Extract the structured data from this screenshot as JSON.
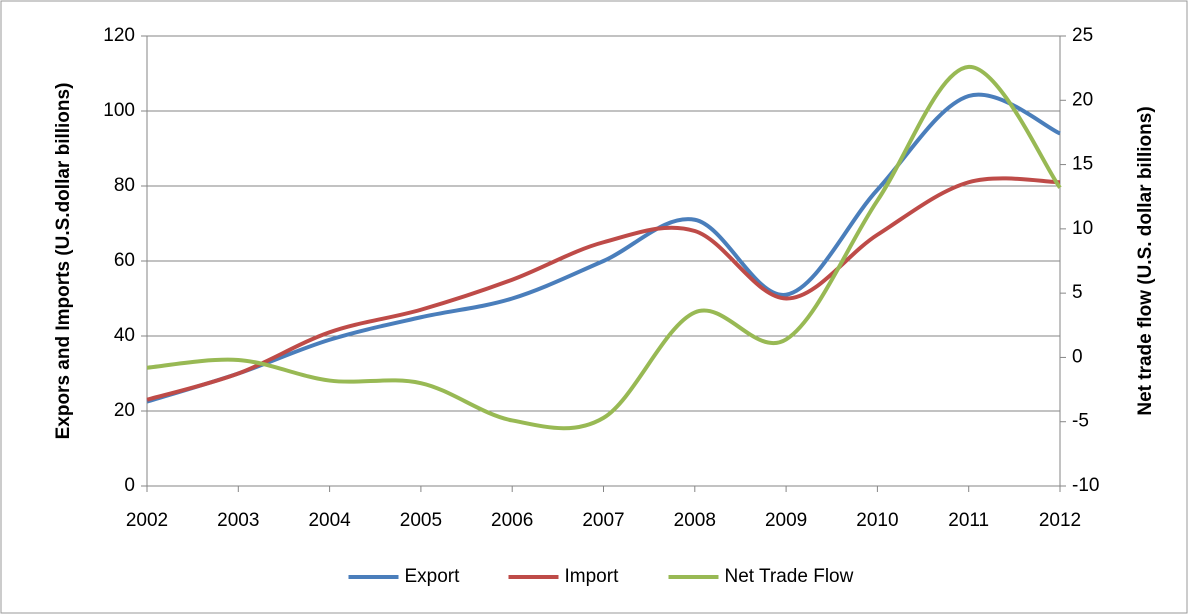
{
  "chart_data": {
    "type": "line",
    "y_label": "Expors and Imports (U.S.dollar billions)",
    "y2_label": "Net trade flow (U.S. dollar billions)",
    "categories": [
      "2002",
      "2003",
      "2004",
      "2005",
      "2006",
      "2007",
      "2008",
      "2009",
      "2010",
      "2011",
      "2012"
    ],
    "series": [
      {
        "name": "Export",
        "color": "#4a7ebb",
        "values": [
          22.5,
          30,
          39,
          45,
          50,
          60,
          71,
          51,
          79,
          104,
          94
        ]
      },
      {
        "name": "Import",
        "color": "#be4b48",
        "values": [
          23,
          30,
          41,
          47,
          55,
          65,
          68,
          50,
          67,
          81,
          81
        ]
      },
      {
        "name": "Net Trade Flow",
        "color": "#98b954",
        "axis": "y2",
        "values": [
          -0.8,
          -0.2,
          -1.8,
          -2,
          -4.9,
          -4.7,
          3.5,
          1.4,
          12.2,
          22.6,
          13.2
        ]
      }
    ],
    "ylim": [
      0,
      120
    ],
    "yticks": [
      0,
      20,
      40,
      60,
      80,
      100,
      120
    ],
    "y2lim": [
      -10,
      25
    ],
    "y2ticks": [
      -10,
      -5,
      0,
      5,
      10,
      15,
      20,
      25
    ],
    "grid": true,
    "legend": "bottom",
    "smooth": true
  }
}
